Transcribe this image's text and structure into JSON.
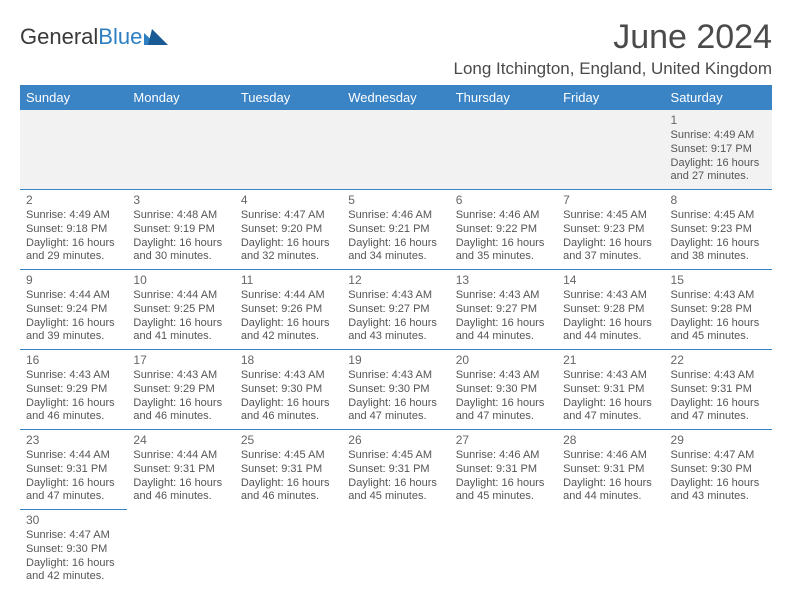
{
  "brand": {
    "part1": "General",
    "part2": "Blue"
  },
  "title": "June 2024",
  "location": "Long Itchington, England, United Kingdom",
  "colors": {
    "header_bg": "#3a83c5",
    "header_text": "#ffffff",
    "grid_border": "#3a83c5",
    "first_row_bg": "#f2f2f2",
    "body_text": "#555555",
    "title_text": "#4a4a4a"
  },
  "typography": {
    "title_fontsize": 34,
    "location_fontsize": 17,
    "dayheader_fontsize": 13,
    "cell_fontsize": 11
  },
  "day_headers": [
    "Sunday",
    "Monday",
    "Tuesday",
    "Wednesday",
    "Thursday",
    "Friday",
    "Saturday"
  ],
  "weeks": [
    [
      null,
      null,
      null,
      null,
      null,
      null,
      {
        "n": "1",
        "sr": "Sunrise: 4:49 AM",
        "ss": "Sunset: 9:17 PM",
        "d1": "Daylight: 16 hours",
        "d2": "and 27 minutes."
      }
    ],
    [
      {
        "n": "2",
        "sr": "Sunrise: 4:49 AM",
        "ss": "Sunset: 9:18 PM",
        "d1": "Daylight: 16 hours",
        "d2": "and 29 minutes."
      },
      {
        "n": "3",
        "sr": "Sunrise: 4:48 AM",
        "ss": "Sunset: 9:19 PM",
        "d1": "Daylight: 16 hours",
        "d2": "and 30 minutes."
      },
      {
        "n": "4",
        "sr": "Sunrise: 4:47 AM",
        "ss": "Sunset: 9:20 PM",
        "d1": "Daylight: 16 hours",
        "d2": "and 32 minutes."
      },
      {
        "n": "5",
        "sr": "Sunrise: 4:46 AM",
        "ss": "Sunset: 9:21 PM",
        "d1": "Daylight: 16 hours",
        "d2": "and 34 minutes."
      },
      {
        "n": "6",
        "sr": "Sunrise: 4:46 AM",
        "ss": "Sunset: 9:22 PM",
        "d1": "Daylight: 16 hours",
        "d2": "and 35 minutes."
      },
      {
        "n": "7",
        "sr": "Sunrise: 4:45 AM",
        "ss": "Sunset: 9:23 PM",
        "d1": "Daylight: 16 hours",
        "d2": "and 37 minutes."
      },
      {
        "n": "8",
        "sr": "Sunrise: 4:45 AM",
        "ss": "Sunset: 9:23 PM",
        "d1": "Daylight: 16 hours",
        "d2": "and 38 minutes."
      }
    ],
    [
      {
        "n": "9",
        "sr": "Sunrise: 4:44 AM",
        "ss": "Sunset: 9:24 PM",
        "d1": "Daylight: 16 hours",
        "d2": "and 39 minutes."
      },
      {
        "n": "10",
        "sr": "Sunrise: 4:44 AM",
        "ss": "Sunset: 9:25 PM",
        "d1": "Daylight: 16 hours",
        "d2": "and 41 minutes."
      },
      {
        "n": "11",
        "sr": "Sunrise: 4:44 AM",
        "ss": "Sunset: 9:26 PM",
        "d1": "Daylight: 16 hours",
        "d2": "and 42 minutes."
      },
      {
        "n": "12",
        "sr": "Sunrise: 4:43 AM",
        "ss": "Sunset: 9:27 PM",
        "d1": "Daylight: 16 hours",
        "d2": "and 43 minutes."
      },
      {
        "n": "13",
        "sr": "Sunrise: 4:43 AM",
        "ss": "Sunset: 9:27 PM",
        "d1": "Daylight: 16 hours",
        "d2": "and 44 minutes."
      },
      {
        "n": "14",
        "sr": "Sunrise: 4:43 AM",
        "ss": "Sunset: 9:28 PM",
        "d1": "Daylight: 16 hours",
        "d2": "and 44 minutes."
      },
      {
        "n": "15",
        "sr": "Sunrise: 4:43 AM",
        "ss": "Sunset: 9:28 PM",
        "d1": "Daylight: 16 hours",
        "d2": "and 45 minutes."
      }
    ],
    [
      {
        "n": "16",
        "sr": "Sunrise: 4:43 AM",
        "ss": "Sunset: 9:29 PM",
        "d1": "Daylight: 16 hours",
        "d2": "and 46 minutes."
      },
      {
        "n": "17",
        "sr": "Sunrise: 4:43 AM",
        "ss": "Sunset: 9:29 PM",
        "d1": "Daylight: 16 hours",
        "d2": "and 46 minutes."
      },
      {
        "n": "18",
        "sr": "Sunrise: 4:43 AM",
        "ss": "Sunset: 9:30 PM",
        "d1": "Daylight: 16 hours",
        "d2": "and 46 minutes."
      },
      {
        "n": "19",
        "sr": "Sunrise: 4:43 AM",
        "ss": "Sunset: 9:30 PM",
        "d1": "Daylight: 16 hours",
        "d2": "and 47 minutes."
      },
      {
        "n": "20",
        "sr": "Sunrise: 4:43 AM",
        "ss": "Sunset: 9:30 PM",
        "d1": "Daylight: 16 hours",
        "d2": "and 47 minutes."
      },
      {
        "n": "21",
        "sr": "Sunrise: 4:43 AM",
        "ss": "Sunset: 9:31 PM",
        "d1": "Daylight: 16 hours",
        "d2": "and 47 minutes."
      },
      {
        "n": "22",
        "sr": "Sunrise: 4:43 AM",
        "ss": "Sunset: 9:31 PM",
        "d1": "Daylight: 16 hours",
        "d2": "and 47 minutes."
      }
    ],
    [
      {
        "n": "23",
        "sr": "Sunrise: 4:44 AM",
        "ss": "Sunset: 9:31 PM",
        "d1": "Daylight: 16 hours",
        "d2": "and 47 minutes."
      },
      {
        "n": "24",
        "sr": "Sunrise: 4:44 AM",
        "ss": "Sunset: 9:31 PM",
        "d1": "Daylight: 16 hours",
        "d2": "and 46 minutes."
      },
      {
        "n": "25",
        "sr": "Sunrise: 4:45 AM",
        "ss": "Sunset: 9:31 PM",
        "d1": "Daylight: 16 hours",
        "d2": "and 46 minutes."
      },
      {
        "n": "26",
        "sr": "Sunrise: 4:45 AM",
        "ss": "Sunset: 9:31 PM",
        "d1": "Daylight: 16 hours",
        "d2": "and 45 minutes."
      },
      {
        "n": "27",
        "sr": "Sunrise: 4:46 AM",
        "ss": "Sunset: 9:31 PM",
        "d1": "Daylight: 16 hours",
        "d2": "and 45 minutes."
      },
      {
        "n": "28",
        "sr": "Sunrise: 4:46 AM",
        "ss": "Sunset: 9:31 PM",
        "d1": "Daylight: 16 hours",
        "d2": "and 44 minutes."
      },
      {
        "n": "29",
        "sr": "Sunrise: 4:47 AM",
        "ss": "Sunset: 9:30 PM",
        "d1": "Daylight: 16 hours",
        "d2": "and 43 minutes."
      }
    ],
    [
      {
        "n": "30",
        "sr": "Sunrise: 4:47 AM",
        "ss": "Sunset: 9:30 PM",
        "d1": "Daylight: 16 hours",
        "d2": "and 42 minutes."
      },
      null,
      null,
      null,
      null,
      null,
      null
    ]
  ]
}
